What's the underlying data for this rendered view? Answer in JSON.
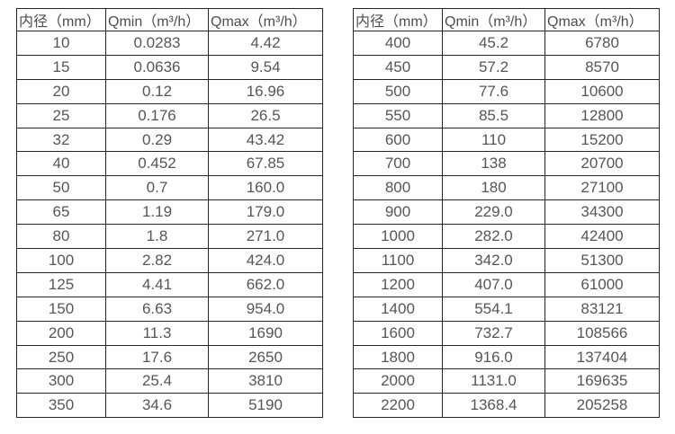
{
  "page": {
    "description_colors": {
      "background": "#ffffff",
      "table_border": "#262626",
      "header_text": "#4d4d4d",
      "cell_text": "#565656"
    }
  },
  "tables": [
    {
      "name": "flow-table-left",
      "headers": [
        "内径（mm）",
        "Qmin（m³/h）",
        "Qmax（m³/h）"
      ],
      "rows": [
        [
          "10",
          "0.0283",
          "4.42"
        ],
        [
          "15",
          "0.0636",
          "9.54"
        ],
        [
          "20",
          "0.12",
          "16.96"
        ],
        [
          "25",
          "0.176",
          "26.5"
        ],
        [
          "32",
          "0.29",
          "43.42"
        ],
        [
          "40",
          "0.452",
          "67.85"
        ],
        [
          "50",
          "0.7",
          "160.0"
        ],
        [
          "65",
          "1.19",
          "179.0"
        ],
        [
          "80",
          "1.8",
          "271.0"
        ],
        [
          "100",
          "2.82",
          "424.0"
        ],
        [
          "125",
          "4.41",
          "662.0"
        ],
        [
          "150",
          "6.63",
          "954.0"
        ],
        [
          "200",
          "11.3",
          "1690"
        ],
        [
          "250",
          "17.6",
          "2650"
        ],
        [
          "300",
          "25.4",
          "3810"
        ],
        [
          "350",
          "34.6",
          "5190"
        ]
      ]
    },
    {
      "name": "flow-table-right",
      "headers": [
        "内径（mm）",
        "Qmin（m³/h）",
        "Qmax（m³/h）"
      ],
      "rows": [
        [
          "400",
          "45.2",
          "6780"
        ],
        [
          "450",
          "57.2",
          "8570"
        ],
        [
          "500",
          "77.6",
          "10600"
        ],
        [
          "550",
          "85.5",
          "12800"
        ],
        [
          "600",
          "110",
          "15200"
        ],
        [
          "700",
          "138",
          "20700"
        ],
        [
          "800",
          "180",
          "27100"
        ],
        [
          "900",
          "229.0",
          "34300"
        ],
        [
          "1000",
          "282.0",
          "42400"
        ],
        [
          "1100",
          "342.0",
          "51300"
        ],
        [
          "1200",
          "407.0",
          "61000"
        ],
        [
          "1400",
          "554.1",
          "83121"
        ],
        [
          "1600",
          "732.7",
          "108566"
        ],
        [
          "1800",
          "916.0",
          "137404"
        ],
        [
          "2000",
          "1131.0",
          "169635"
        ],
        [
          "2200",
          "1368.4",
          "205258"
        ]
      ]
    }
  ]
}
